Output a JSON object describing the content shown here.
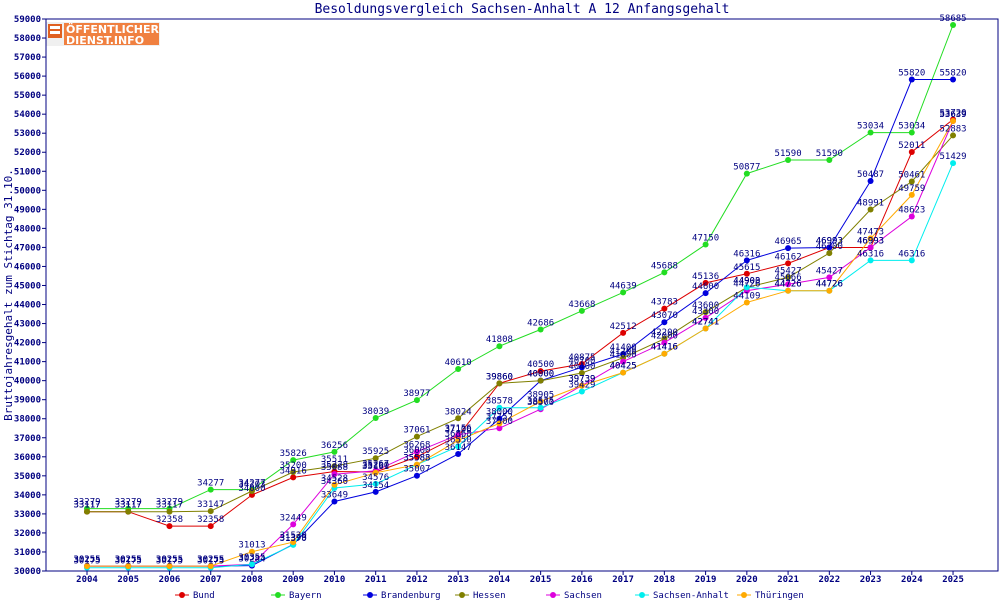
{
  "chart_data": {
    "type": "line",
    "title": "Besoldungsvergleich Sachsen-Anhalt A 12 Anfangsgehalt",
    "xlabel": "",
    "ylabel": "Bruttojahresgehalt zum Stichtag 31.10.",
    "ylim": [
      30000,
      59000
    ],
    "yticks": [
      30000,
      31000,
      32000,
      33000,
      34000,
      35000,
      36000,
      37000,
      38000,
      39000,
      40000,
      41000,
      42000,
      43000,
      44000,
      45000,
      46000,
      47000,
      48000,
      49000,
      50000,
      51000,
      52000,
      53000,
      54000,
      55000,
      56000,
      57000,
      58000,
      59000
    ],
    "x": [
      "2004",
      "2005",
      "2006",
      "2007",
      "2008",
      "2009",
      "2010",
      "2011",
      "2012",
      "2013",
      "2014",
      "2015",
      "2016",
      "2017",
      "2018",
      "2019",
      "2020",
      "2021",
      "2022",
      "2023",
      "2024",
      "2025"
    ],
    "grid": false,
    "legend_position": "bottom",
    "series": [
      {
        "name": "Bund",
        "color": "#dd0000",
        "values": [
          33117,
          33117,
          32358,
          32358,
          34000,
          34916,
          35228,
          35200,
          36000,
          37100,
          39860,
          40500,
          40875,
          42512,
          43783,
          45136,
          45615,
          46162,
          46993,
          46993,
          52011,
          53720
        ]
      },
      {
        "name": "Bayern",
        "color": "#22dd22",
        "values": [
          33279,
          33279,
          33279,
          34277,
          34277,
          35826,
          36256,
          38039,
          38977,
          40610,
          41808,
          42686,
          43668,
          44639,
          45688,
          47150,
          50877,
          51590,
          51590,
          53034,
          53034,
          58685
        ]
      },
      {
        "name": "Brandenburg",
        "color": "#0000dd",
        "values": [
          30255,
          30255,
          30255,
          30255,
          30284,
          31393,
          33649,
          34154,
          35007,
          36147,
          38000,
          40000,
          40700,
          41400,
          43070,
          44600,
          46316,
          46965,
          46993,
          50487,
          55820,
          55820
        ]
      },
      {
        "name": "Hessen",
        "color": "#808000",
        "values": [
          33117,
          33117,
          33117,
          33147,
          34203,
          35200,
          35511,
          35925,
          37061,
          38024,
          39860,
          40000,
          40400,
          41200,
          42200,
          43600,
          44900,
          45427,
          46700,
          48991,
          50461,
          52883
        ]
      },
      {
        "name": "Sachsen",
        "color": "#dd00dd",
        "values": [
          30255,
          30255,
          30255,
          30255,
          30355,
          32449,
          35088,
          35267,
          36268,
          37156,
          37500,
          38500,
          39739,
          41000,
          42000,
          43300,
          44726,
          45066,
          45427,
          46993,
          48623,
          53639
        ]
      },
      {
        "name": "Sachsen-Anhalt",
        "color": "#00eeee",
        "values": [
          30175,
          30175,
          30175,
          30175,
          30355,
          31370,
          34360,
          34576,
          35583,
          36550,
          38578,
          38575,
          39429,
          40425,
          41416,
          42741,
          44903,
          44726,
          44726,
          46316,
          46316,
          51429
        ]
      },
      {
        "name": "Thüringen",
        "color": "#ffaa00",
        "values": [
          30255,
          30255,
          30255,
          30255,
          31013,
          31520,
          34528,
          35161,
          35588,
          36868,
          37752,
          38905,
          39739,
          40425,
          41416,
          42741,
          44109,
          44726,
          44726,
          47473,
          49759,
          53639
        ]
      }
    ],
    "labels_visible": [
      {
        "series": 0,
        "i": 6,
        "text": "35228"
      }
    ]
  },
  "logo": {
    "line1": "ÖFFENTLICHER",
    "line2": "DIENST.INFO"
  }
}
